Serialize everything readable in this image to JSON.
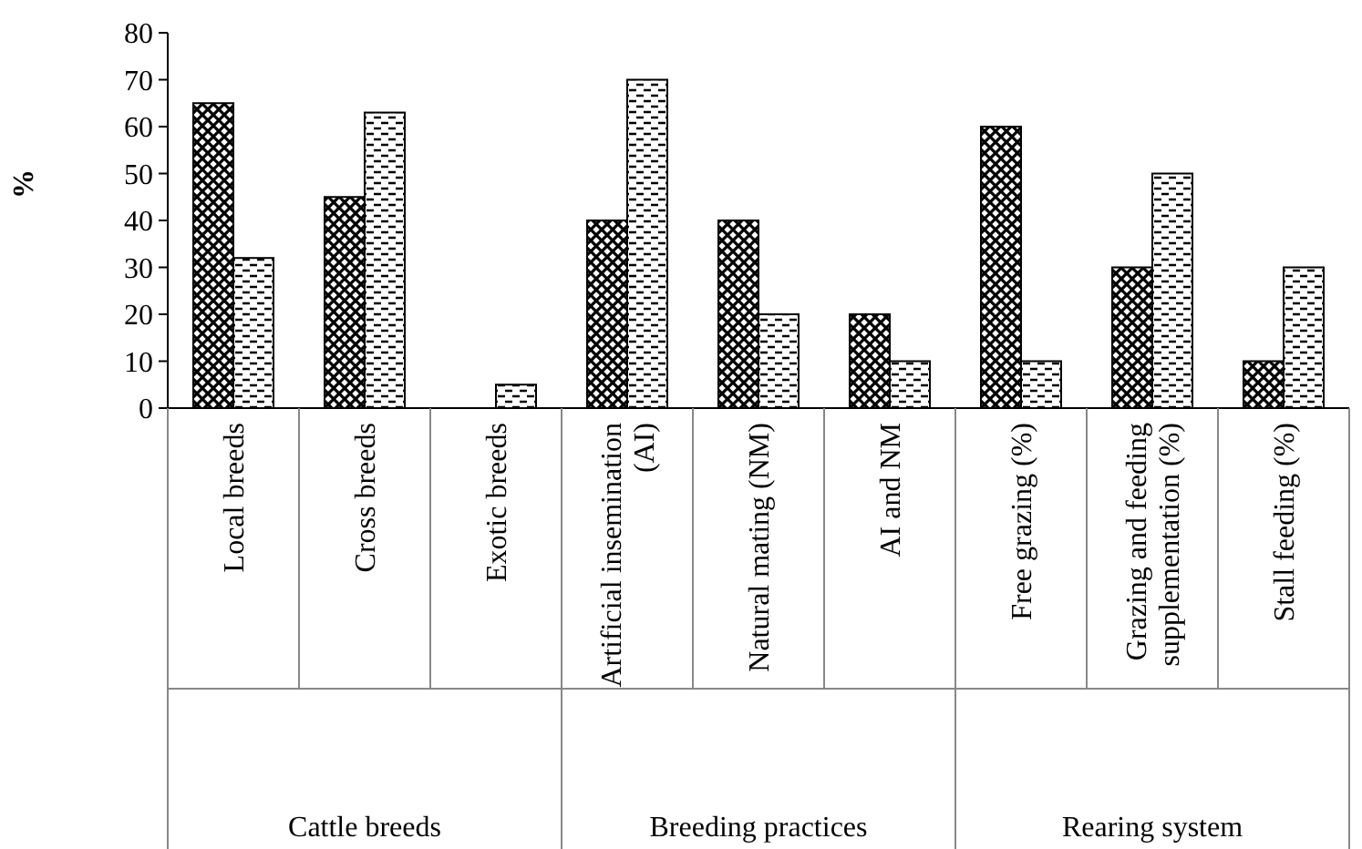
{
  "chart_data": {
    "type": "bar",
    "ylabel": "%",
    "categories": [
      "Local breeds",
      "Cross breeds",
      "Exotic breeds",
      "Artificial insemination (AI)",
      "Natural mating (NM)",
      "AI and NM",
      "Free grazing (%)",
      "Grazing and feeding supplementation (%)",
      "Stall feeding (%)"
    ],
    "series": [
      {
        "color": "#000000",
        "values": [
          65,
          45,
          0,
          40,
          40,
          20,
          60,
          30,
          10
        ]
      },
      {
        "color": "#000000",
        "values": [
          32,
          63,
          5,
          70,
          20,
          10,
          10,
          50,
          30
        ]
      }
    ],
    "ylim": [
      0,
      80
    ],
    "yticks": [
      0,
      10,
      20,
      30,
      40,
      50,
      60,
      70,
      80
    ],
    "grid": false,
    "annotations": [
      "Cattle breeds",
      "Breeding practices",
      "Rearing system"
    ]
  }
}
